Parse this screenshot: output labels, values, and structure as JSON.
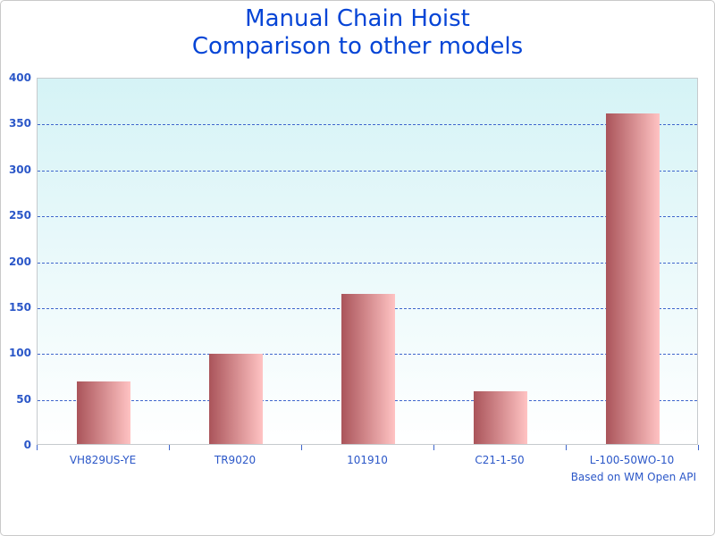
{
  "title": {
    "line1": "Manual Chain Hoist",
    "line2": "Comparison to other models"
  },
  "footnote": "Based on WM Open API",
  "colors": {
    "title": "#0645d6",
    "axis_label": "#2b57c8",
    "gridline": "#3f66cc",
    "bar_gradient_left": "#aa545a",
    "bar_gradient_right": "#ffc3c3",
    "plot_bg_top": "#d5f3f6",
    "plot_bg_bottom": "#ffffff",
    "plot_border": "#c6cacd"
  },
  "chart_data": {
    "type": "bar",
    "title": "Manual Chain Hoist Comparison to other models",
    "categories": [
      "VH829US-YE",
      "TR9020",
      "101910",
      "C21-1-50",
      "L-100-50WO-10"
    ],
    "values": [
      68,
      98,
      164,
      57,
      360
    ],
    "xlabel": "",
    "ylabel": "",
    "ylim": [
      0,
      400
    ],
    "ytick_step": 50,
    "grid": "horizontal-dashed",
    "legend": "none",
    "annotation": "Based on WM Open API"
  }
}
